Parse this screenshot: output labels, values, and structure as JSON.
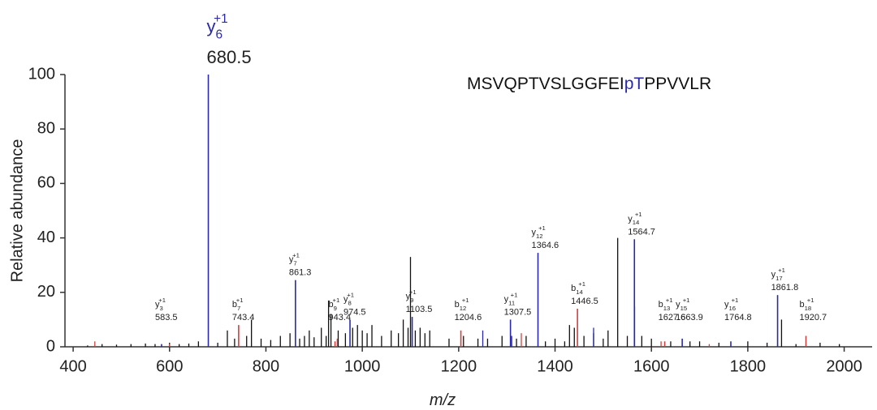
{
  "chart_data": {
    "type": "spectrum",
    "xlabel": "m/z",
    "ylabel": "Relative abundance",
    "sequence": [
      "MSVQPTVSLGGFEI",
      "pT",
      "PPVVLR"
    ],
    "sequence_colors": [
      "#111111",
      "#2a2aa8",
      "#111111"
    ],
    "xlim": [
      383,
      2058
    ],
    "ylim": [
      0,
      100
    ],
    "xticks": [
      400,
      600,
      800,
      1000,
      1200,
      1400,
      1600,
      1800,
      2000
    ],
    "yticks": [
      0,
      20,
      40,
      60,
      80,
      100
    ],
    "peaks": [
      {
        "color": "#111111",
        "x": [
          430,
          460,
          490,
          520,
          550,
          570,
          600,
          620,
          640,
          660,
          700,
          720,
          735,
          760,
          770,
          790,
          810,
          830,
          850,
          870,
          880,
          890,
          900,
          915,
          925,
          930,
          935,
          950,
          965,
          980,
          990,
          1000,
          1010,
          1020,
          1040,
          1060,
          1075,
          1085,
          1095,
          1100,
          1110,
          1120,
          1130,
          1140,
          1180,
          1210,
          1240,
          1260,
          1290,
          1320,
          1340,
          1380,
          1400,
          1420,
          1430,
          1440,
          1460,
          1480,
          1500,
          1510,
          1530,
          1550,
          1565,
          1580,
          1600,
          1640,
          1680,
          1700,
          1740,
          1800,
          1840,
          1870,
          1900,
          1950,
          1990
        ],
        "values": [
          0.5,
          1,
          0.8,
          1,
          1.2,
          1,
          1.5,
          1,
          1.2,
          2,
          1.5,
          6,
          3,
          4,
          10,
          3,
          2.5,
          4,
          5,
          3,
          4,
          6,
          3.5,
          7,
          4,
          17,
          12,
          6,
          5,
          7,
          8,
          6,
          5,
          8,
          4,
          6,
          5,
          10,
          7,
          33,
          6,
          7,
          5,
          6,
          3,
          4,
          3,
          3,
          4,
          3,
          4,
          2,
          3,
          2,
          8,
          7,
          4,
          5,
          3,
          6,
          40,
          4,
          15,
          4,
          3,
          2,
          2,
          2,
          1.5,
          2,
          1.5,
          10,
          1,
          1.5,
          1
        ]
      },
      {
        "color": "#d04040",
        "x": [
          445,
          600,
          948,
          1330,
          1620,
          1720
        ],
        "values": [
          2,
          1,
          3,
          5,
          2,
          1
        ]
      },
      {
        "color": "#2a2aa8",
        "x": [
          1250,
          1310,
          1480
        ],
        "values": [
          6,
          4,
          7
        ]
      }
    ],
    "annotations": [
      {
        "ion": "y",
        "index": 3,
        "charge": "+1",
        "mz": 583.5,
        "value": 1,
        "color": "#2a2aa8"
      },
      {
        "ion": "y",
        "index": 6,
        "charge": "+1",
        "mz": 680.5,
        "value": 100,
        "color": "#2a2aa8"
      },
      {
        "ion": "b",
        "index": 7,
        "charge": "+1",
        "mz": 743.4,
        "value": 8,
        "color": "#d04040"
      },
      {
        "ion": "y",
        "index": 7,
        "charge": "+1",
        "mz": 861.3,
        "value": 24.5,
        "color": "#2a2aa8"
      },
      {
        "ion": "b",
        "index": 9,
        "charge": "+1",
        "mz": 943.4,
        "value": 2,
        "color": "#d04040"
      },
      {
        "ion": "y",
        "index": 8,
        "charge": "+1",
        "mz": 974.5,
        "value": 10,
        "color": "#2a2aa8"
      },
      {
        "ion": "y",
        "index": 9,
        "charge": "+1",
        "mz": 1103.5,
        "value": 11,
        "color": "#2a2aa8"
      },
      {
        "ion": "b",
        "index": 12,
        "charge": "+1",
        "mz": 1204.6,
        "value": 6,
        "color": "#d04040"
      },
      {
        "ion": "y",
        "index": 11,
        "charge": "+1",
        "mz": 1307.5,
        "value": 10,
        "color": "#2a2aa8"
      },
      {
        "ion": "y",
        "index": 12,
        "charge": "+1",
        "mz": 1364.6,
        "value": 34.5,
        "color": "#2a2aa8"
      },
      {
        "ion": "b",
        "index": 14,
        "charge": "+1",
        "mz": 1446.5,
        "value": 14,
        "color": "#d04040"
      },
      {
        "ion": "y",
        "index": 14,
        "charge": "+1",
        "mz": 1564.7,
        "value": 39.5,
        "color": "#2a2aa8"
      },
      {
        "ion": "b",
        "index": 13,
        "charge": "+1",
        "mz": 1627.6,
        "value": 2,
        "color": "#d04040"
      },
      {
        "ion": "y",
        "index": 15,
        "charge": "+1",
        "mz": 1663.9,
        "value": 3,
        "color": "#2a2aa8"
      },
      {
        "ion": "y",
        "index": 16,
        "charge": "+1",
        "mz": 1764.8,
        "value": 2,
        "color": "#2a2aa8"
      },
      {
        "ion": "y",
        "index": 17,
        "charge": "+1",
        "mz": 1861.8,
        "value": 19,
        "color": "#2a2aa8"
      },
      {
        "ion": "b",
        "index": 18,
        "charge": "+1",
        "mz": 1920.7,
        "value": 4,
        "color": "#d04040"
      }
    ]
  }
}
